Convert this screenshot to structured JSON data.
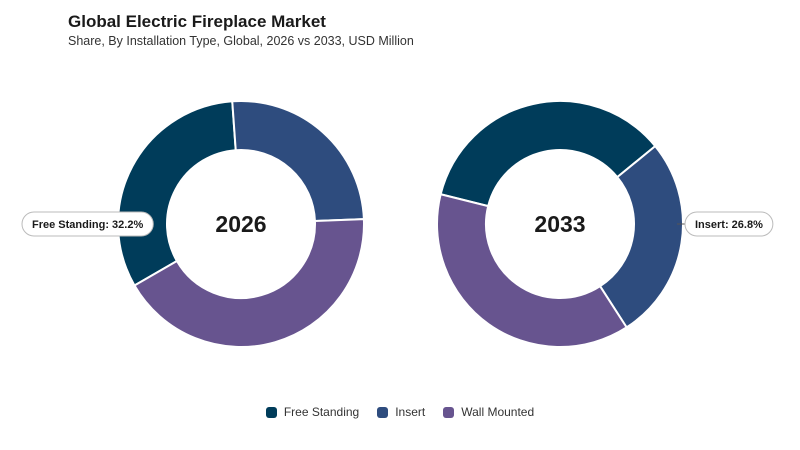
{
  "header": {
    "title": "Global Electric Fireplace Market",
    "subtitle": "Share, By Installation Type, Global, 2026 vs 2033, USD Million"
  },
  "colors": {
    "Free Standing": "#003c5a",
    "Insert": "#2e4c7e",
    "Wall Mounted": "#67548f"
  },
  "chart_data": [
    {
      "type": "pie",
      "center_label": "2026",
      "categories": [
        "Free Standing",
        "Insert",
        "Wall Mounted"
      ],
      "values": [
        32.2,
        25.5,
        42.3
      ],
      "annotation": {
        "category": "Free Standing",
        "text": "Free Standing: 32.2%",
        "side": "left"
      }
    },
    {
      "type": "pie",
      "center_label": "2033",
      "categories": [
        "Free Standing",
        "Insert",
        "Wall Mounted"
      ],
      "values": [
        35.2,
        26.8,
        38.0
      ],
      "annotation": {
        "category": "Insert",
        "text": "Insert: 26.8%",
        "side": "right"
      }
    }
  ],
  "legend": {
    "position": "bottom",
    "items": [
      "Free Standing",
      "Insert",
      "Wall Mounted"
    ]
  }
}
